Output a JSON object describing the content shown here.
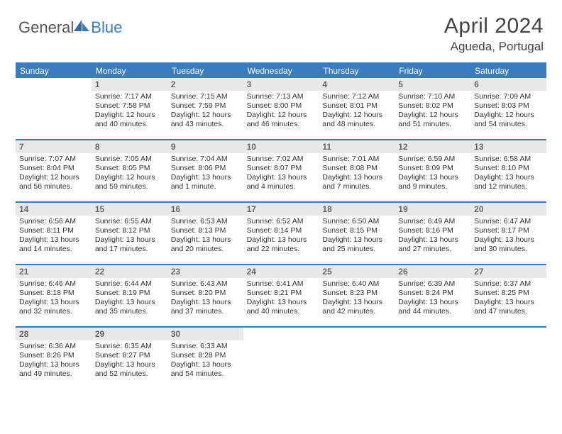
{
  "logo": {
    "text1": "General",
    "text2": "Blue"
  },
  "title": "April 2024",
  "location": "Agueda, Portugal",
  "colors": {
    "accent": "#3b7bbf",
    "header_bg": "#e8e8e8",
    "text": "#333333",
    "logo_gray": "#555555"
  },
  "dow": [
    "Sunday",
    "Monday",
    "Tuesday",
    "Wednesday",
    "Thursday",
    "Friday",
    "Saturday"
  ],
  "weeks": [
    [
      {
        "n": "",
        "sr": "",
        "ss": "",
        "dl": ""
      },
      {
        "n": "1",
        "sr": "Sunrise: 7:17 AM",
        "ss": "Sunset: 7:58 PM",
        "dl": "Daylight: 12 hours and 40 minutes."
      },
      {
        "n": "2",
        "sr": "Sunrise: 7:15 AM",
        "ss": "Sunset: 7:59 PM",
        "dl": "Daylight: 12 hours and 43 minutes."
      },
      {
        "n": "3",
        "sr": "Sunrise: 7:13 AM",
        "ss": "Sunset: 8:00 PM",
        "dl": "Daylight: 12 hours and 46 minutes."
      },
      {
        "n": "4",
        "sr": "Sunrise: 7:12 AM",
        "ss": "Sunset: 8:01 PM",
        "dl": "Daylight: 12 hours and 48 minutes."
      },
      {
        "n": "5",
        "sr": "Sunrise: 7:10 AM",
        "ss": "Sunset: 8:02 PM",
        "dl": "Daylight: 12 hours and 51 minutes."
      },
      {
        "n": "6",
        "sr": "Sunrise: 7:09 AM",
        "ss": "Sunset: 8:03 PM",
        "dl": "Daylight: 12 hours and 54 minutes."
      }
    ],
    [
      {
        "n": "7",
        "sr": "Sunrise: 7:07 AM",
        "ss": "Sunset: 8:04 PM",
        "dl": "Daylight: 12 hours and 56 minutes."
      },
      {
        "n": "8",
        "sr": "Sunrise: 7:05 AM",
        "ss": "Sunset: 8:05 PM",
        "dl": "Daylight: 12 hours and 59 minutes."
      },
      {
        "n": "9",
        "sr": "Sunrise: 7:04 AM",
        "ss": "Sunset: 8:06 PM",
        "dl": "Daylight: 13 hours and 1 minute."
      },
      {
        "n": "10",
        "sr": "Sunrise: 7:02 AM",
        "ss": "Sunset: 8:07 PM",
        "dl": "Daylight: 13 hours and 4 minutes."
      },
      {
        "n": "11",
        "sr": "Sunrise: 7:01 AM",
        "ss": "Sunset: 8:08 PM",
        "dl": "Daylight: 13 hours and 7 minutes."
      },
      {
        "n": "12",
        "sr": "Sunrise: 6:59 AM",
        "ss": "Sunset: 8:09 PM",
        "dl": "Daylight: 13 hours and 9 minutes."
      },
      {
        "n": "13",
        "sr": "Sunrise: 6:58 AM",
        "ss": "Sunset: 8:10 PM",
        "dl": "Daylight: 13 hours and 12 minutes."
      }
    ],
    [
      {
        "n": "14",
        "sr": "Sunrise: 6:56 AM",
        "ss": "Sunset: 8:11 PM",
        "dl": "Daylight: 13 hours and 14 minutes."
      },
      {
        "n": "15",
        "sr": "Sunrise: 6:55 AM",
        "ss": "Sunset: 8:12 PM",
        "dl": "Daylight: 13 hours and 17 minutes."
      },
      {
        "n": "16",
        "sr": "Sunrise: 6:53 AM",
        "ss": "Sunset: 8:13 PM",
        "dl": "Daylight: 13 hours and 20 minutes."
      },
      {
        "n": "17",
        "sr": "Sunrise: 6:52 AM",
        "ss": "Sunset: 8:14 PM",
        "dl": "Daylight: 13 hours and 22 minutes."
      },
      {
        "n": "18",
        "sr": "Sunrise: 6:50 AM",
        "ss": "Sunset: 8:15 PM",
        "dl": "Daylight: 13 hours and 25 minutes."
      },
      {
        "n": "19",
        "sr": "Sunrise: 6:49 AM",
        "ss": "Sunset: 8:16 PM",
        "dl": "Daylight: 13 hours and 27 minutes."
      },
      {
        "n": "20",
        "sr": "Sunrise: 6:47 AM",
        "ss": "Sunset: 8:17 PM",
        "dl": "Daylight: 13 hours and 30 minutes."
      }
    ],
    [
      {
        "n": "21",
        "sr": "Sunrise: 6:46 AM",
        "ss": "Sunset: 8:18 PM",
        "dl": "Daylight: 13 hours and 32 minutes."
      },
      {
        "n": "22",
        "sr": "Sunrise: 6:44 AM",
        "ss": "Sunset: 8:19 PM",
        "dl": "Daylight: 13 hours and 35 minutes."
      },
      {
        "n": "23",
        "sr": "Sunrise: 6:43 AM",
        "ss": "Sunset: 8:20 PM",
        "dl": "Daylight: 13 hours and 37 minutes."
      },
      {
        "n": "24",
        "sr": "Sunrise: 6:41 AM",
        "ss": "Sunset: 8:21 PM",
        "dl": "Daylight: 13 hours and 40 minutes."
      },
      {
        "n": "25",
        "sr": "Sunrise: 6:40 AM",
        "ss": "Sunset: 8:23 PM",
        "dl": "Daylight: 13 hours and 42 minutes."
      },
      {
        "n": "26",
        "sr": "Sunrise: 6:39 AM",
        "ss": "Sunset: 8:24 PM",
        "dl": "Daylight: 13 hours and 44 minutes."
      },
      {
        "n": "27",
        "sr": "Sunrise: 6:37 AM",
        "ss": "Sunset: 8:25 PM",
        "dl": "Daylight: 13 hours and 47 minutes."
      }
    ],
    [
      {
        "n": "28",
        "sr": "Sunrise: 6:36 AM",
        "ss": "Sunset: 8:26 PM",
        "dl": "Daylight: 13 hours and 49 minutes."
      },
      {
        "n": "29",
        "sr": "Sunrise: 6:35 AM",
        "ss": "Sunset: 8:27 PM",
        "dl": "Daylight: 13 hours and 52 minutes."
      },
      {
        "n": "30",
        "sr": "Sunrise: 6:33 AM",
        "ss": "Sunset: 8:28 PM",
        "dl": "Daylight: 13 hours and 54 minutes."
      },
      {
        "n": "",
        "sr": "",
        "ss": "",
        "dl": ""
      },
      {
        "n": "",
        "sr": "",
        "ss": "",
        "dl": ""
      },
      {
        "n": "",
        "sr": "",
        "ss": "",
        "dl": ""
      },
      {
        "n": "",
        "sr": "",
        "ss": "",
        "dl": ""
      }
    ]
  ]
}
